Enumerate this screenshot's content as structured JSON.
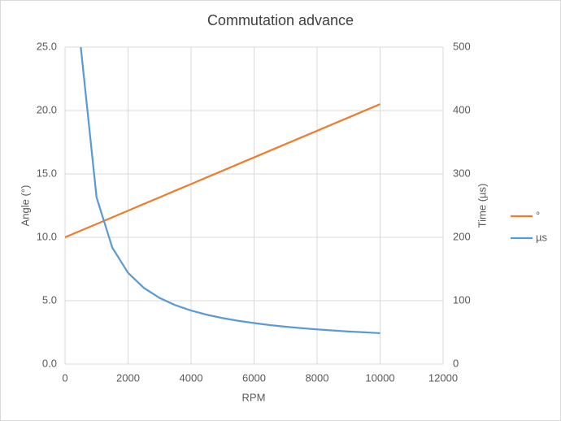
{
  "chart_data": {
    "type": "line",
    "title": "Commutation advance",
    "x_label": "RPM",
    "y_label": "Angle (°)",
    "y2_label": "Time (µs)",
    "x": [
      0,
      500,
      1000,
      1500,
      2000,
      2500,
      3000,
      3500,
      4000,
      4500,
      5000,
      5500,
      6000,
      6500,
      7000,
      7500,
      8000,
      8500,
      9000,
      9500,
      10000
    ],
    "series": [
      {
        "name": "°",
        "color": "#ed7d31",
        "values": [
          10.0,
          10.53,
          11.05,
          11.58,
          12.1,
          12.63,
          13.15,
          13.68,
          14.2,
          14.73,
          15.25,
          15.78,
          16.3,
          16.83,
          17.35,
          17.88,
          18.4,
          18.93,
          19.45,
          19.98,
          20.5
        ]
      },
      {
        "name": "µs",
        "color": "#5b9bd5",
        "axis": "y2",
        "values": [
          null,
          500,
          263.1,
          183.7,
          144.0,
          120.2,
          104.4,
          93.0,
          84.5,
          77.9,
          72.6,
          68.3,
          64.7,
          61.6,
          59.0,
          56.7,
          54.8,
          53.0,
          51.5,
          50.1,
          48.8
        ]
      }
    ],
    "xlim": [
      0,
      12000
    ],
    "xticks": [
      0,
      2000,
      4000,
      6000,
      8000,
      10000,
      12000
    ],
    "ylim": [
      0,
      25
    ],
    "yticks": [
      {
        "value": 0,
        "label": "0.0"
      },
      {
        "value": 5,
        "label": "5.0"
      },
      {
        "value": 10,
        "label": "10.0"
      },
      {
        "value": 15,
        "label": "15.0"
      },
      {
        "value": 20,
        "label": "20.0"
      },
      {
        "value": 25,
        "label": "25.0"
      }
    ],
    "y2lim": [
      0,
      500
    ],
    "y2ticks": [
      0,
      100,
      200,
      300,
      400,
      500
    ],
    "grid": true,
    "legend": "right"
  }
}
